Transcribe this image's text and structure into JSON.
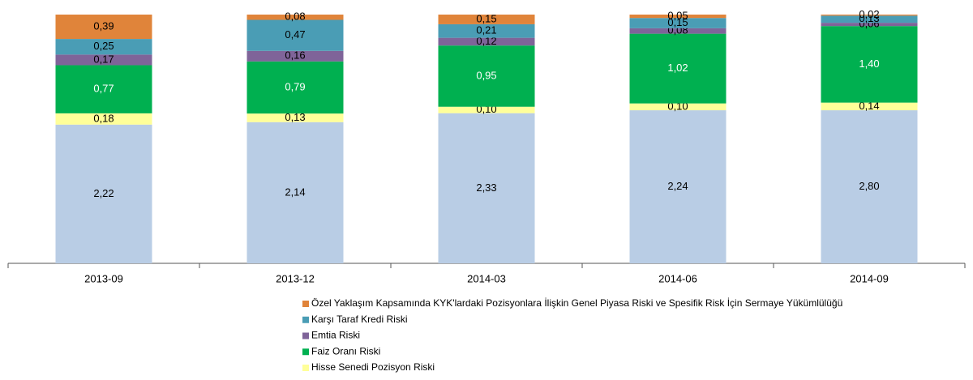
{
  "chart_data": {
    "type": "bar",
    "stacking": "percent",
    "categories": [
      "2013-09",
      "2013-12",
      "2014-03",
      "2014-06",
      "2014-09"
    ],
    "series": [
      {
        "name": null,
        "color": "#b9cde5",
        "values": [
          2.22,
          2.14,
          2.33,
          2.24,
          2.8
        ],
        "value_labels": [
          "2,22",
          "2,14",
          "2,33",
          "2,24",
          "2,80"
        ]
      },
      {
        "name": "Hisse Senedi Pozisyon Riski",
        "color": "#ffff99",
        "values": [
          0.18,
          0.13,
          0.1,
          0.1,
          0.14
        ],
        "value_labels": [
          "0,18",
          "0,13",
          "0,10",
          "0,10",
          "0,14"
        ]
      },
      {
        "name": "Faiz Oranı Riski",
        "color": "#00b050",
        "label_color": "#ffffff",
        "values": [
          0.77,
          0.79,
          0.95,
          1.02,
          1.4
        ],
        "value_labels": [
          "0,77",
          "0,79",
          "0,95",
          "1,02",
          "1,40"
        ]
      },
      {
        "name": "Emtia Riski",
        "color": "#7f6499",
        "values": [
          0.17,
          0.16,
          0.12,
          0.08,
          0.06
        ],
        "value_labels": [
          "0,17",
          "0,16",
          "0,12",
          "0,08",
          "0,06"
        ]
      },
      {
        "name": "Karşı Taraf Kredi Riski",
        "color": "#4a9db5",
        "values": [
          0.25,
          0.47,
          0.21,
          0.15,
          0.13
        ],
        "value_labels": [
          "0,25",
          "0,47",
          "0,21",
          "0,15",
          "0,13"
        ]
      },
      {
        "name": "Özel Yaklaşım Kapsamında KYK'lardaki Pozisyonlara İlişkin Genel Piyasa Riski ve Spesifik Risk İçin Sermaye Yükümlülüğü",
        "color": "#e0843a",
        "values": [
          0.39,
          0.08,
          0.15,
          0.05,
          0.02
        ],
        "value_labels": [
          "0,39",
          "0,08",
          "0,15",
          "0,05",
          "0,02"
        ]
      }
    ]
  }
}
